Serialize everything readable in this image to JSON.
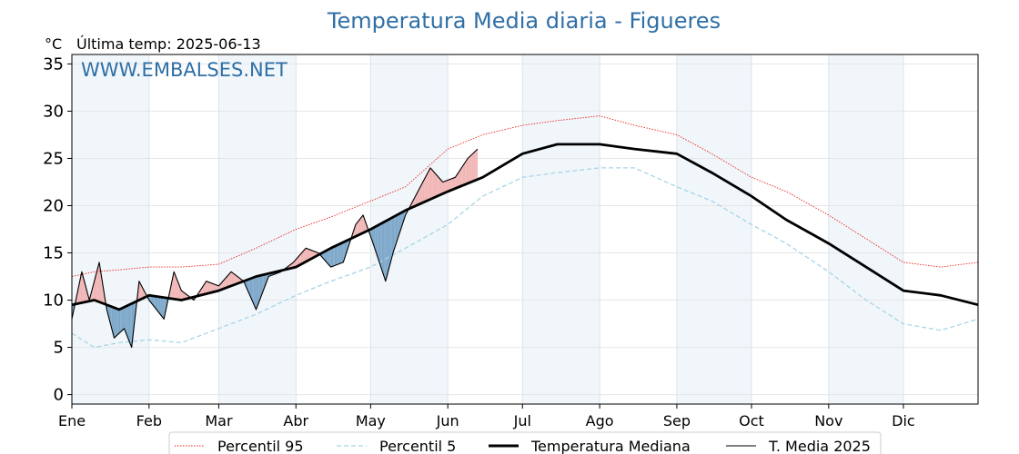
{
  "chart_data": {
    "type": "line",
    "title": "Temperatura Media diaria - Figueres",
    "unit_label": "°C",
    "last_temp_label": "Última temp: 2025-06-13",
    "watermark": "WWW.EMBALSES.NET",
    "xlabel": "",
    "ylabel": "",
    "ylim": [
      -1,
      36
    ],
    "xlim": [
      1,
      365
    ],
    "yticks": [
      0,
      5,
      10,
      15,
      20,
      25,
      30,
      35
    ],
    "months": [
      "Ene",
      "Feb",
      "Mar",
      "Abr",
      "May",
      "Jun",
      "Jul",
      "Ago",
      "Sep",
      "Oct",
      "Nov",
      "Dic"
    ],
    "month_start_days": [
      1,
      32,
      60,
      91,
      121,
      152,
      182,
      213,
      244,
      274,
      305,
      335
    ],
    "grid": true,
    "legend_position": "bottom",
    "series": [
      {
        "name": "Percentil 95",
        "color": "#e8251f",
        "style": "dotted",
        "x": [
          1,
          10,
          20,
          32,
          45,
          60,
          75,
          91,
          105,
          121,
          135,
          152,
          166,
          182,
          196,
          213,
          227,
          244,
          258,
          274,
          288,
          305,
          320,
          335,
          350,
          365
        ],
        "values": [
          12.5,
          13,
          13.2,
          13.5,
          13.5,
          13.8,
          15.5,
          17.5,
          18.8,
          20.5,
          22,
          26,
          27.5,
          28.5,
          29,
          29.5,
          28.5,
          27.5,
          25.5,
          23,
          21.5,
          19,
          16.5,
          14,
          13.5,
          14
        ]
      },
      {
        "name": "Percentil 5",
        "color": "#a8d4e6",
        "style": "dashed",
        "x": [
          1,
          10,
          20,
          32,
          45,
          60,
          75,
          91,
          105,
          121,
          135,
          152,
          166,
          182,
          196,
          213,
          227,
          244,
          258,
          274,
          288,
          305,
          320,
          335,
          350,
          365
        ],
        "values": [
          6.5,
          5,
          5.5,
          5.8,
          5.5,
          7,
          8.5,
          10.5,
          12,
          13.5,
          15.5,
          18,
          21,
          23,
          23.5,
          24,
          24,
          22,
          20.5,
          18,
          16,
          13,
          10,
          7.5,
          6.8,
          8
        ]
      },
      {
        "name": "Temperatura Mediana",
        "color": "#000000",
        "style": "solid-thick",
        "x": [
          1,
          10,
          20,
          32,
          45,
          60,
          75,
          91,
          105,
          121,
          135,
          152,
          166,
          182,
          196,
          213,
          227,
          244,
          258,
          274,
          288,
          305,
          320,
          335,
          350,
          365
        ],
        "values": [
          9.5,
          10,
          9,
          10.5,
          10,
          11,
          12.5,
          13.5,
          15.5,
          17.5,
          19.5,
          21.5,
          23,
          25.5,
          26.5,
          26.5,
          26,
          25.5,
          23.5,
          21,
          18.5,
          16,
          13.5,
          11,
          10.5,
          9.5
        ]
      },
      {
        "name": "T. Media 2025",
        "color": "#000000",
        "style": "solid-thin",
        "x": [
          1,
          5,
          8,
          12,
          15,
          18,
          22,
          25,
          28,
          32,
          35,
          38,
          42,
          45,
          50,
          55,
          60,
          65,
          70,
          75,
          80,
          85,
          90,
          95,
          100,
          105,
          110,
          115,
          118,
          122,
          127,
          130,
          135,
          140,
          145,
          150,
          155,
          160,
          164
        ],
        "values": [
          8,
          13,
          10,
          14,
          9,
          6,
          7,
          5,
          12,
          10,
          9,
          8,
          13,
          11,
          10,
          12,
          11.5,
          13,
          12,
          9,
          12.5,
          13,
          14,
          15.5,
          15,
          13.5,
          14,
          18,
          19,
          16,
          12,
          15,
          19,
          21.5,
          24,
          22.5,
          23,
          25,
          26
        ]
      }
    ]
  },
  "legend": {
    "items": [
      "Percentil 95",
      "Percentil 5",
      "Temperatura Mediana",
      "T. Media 2025"
    ]
  }
}
